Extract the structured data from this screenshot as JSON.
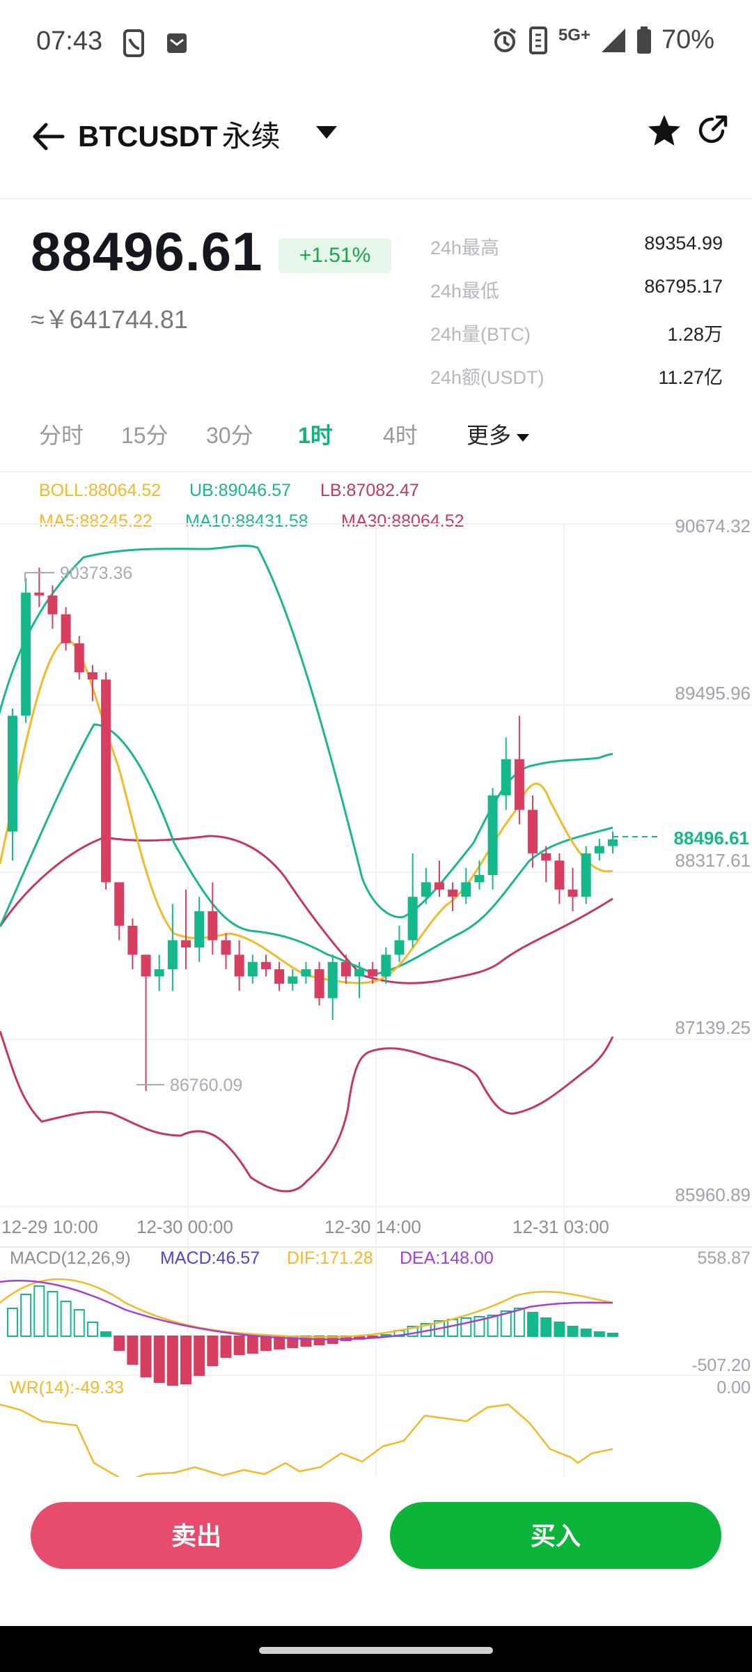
{
  "status_bar": {
    "time": "07:43",
    "network": "5G+",
    "battery": "70%"
  },
  "header": {
    "pair": "BTCUSDT",
    "contract": "永续"
  },
  "ticker": {
    "last_price": "88496.61",
    "change_pct": "+1.51%",
    "cny_price": "≈￥641744.81",
    "stats": [
      {
        "label": "24h最高",
        "value": "89354.99"
      },
      {
        "label": "24h最低",
        "value": "86795.17"
      },
      {
        "label": "24h量(BTC)",
        "value": "1.28万"
      },
      {
        "label": "24h额(USDT)",
        "value": "11.27亿"
      }
    ]
  },
  "interval_tabs": [
    {
      "label": "分时",
      "active": false
    },
    {
      "label": "15分",
      "active": false
    },
    {
      "label": "30分",
      "active": false
    },
    {
      "label": "1时",
      "active": true
    },
    {
      "label": "4时",
      "active": false
    },
    {
      "label": "更多",
      "active": false
    }
  ],
  "indicators": {
    "boll": "BOLL:88064.52",
    "ub": "UB:89046.57",
    "lb": "LB:87082.47",
    "ma5": "MA5:88245.22",
    "ma10": "MA10:88431.58",
    "ma30": "MA30:88064.52",
    "macd_params": "MACD(12,26,9)",
    "macd": "MACD:46.57",
    "dif": "DIF:171.28",
    "dea": "DEA:148.00",
    "wr": "WR(14):-49.33"
  },
  "colors": {
    "up": "#14b88a",
    "down": "#d63f5f",
    "ma5": "#f2b92a",
    "ma10": "#1bb58f",
    "ma30": "#c4385c",
    "dea": "#a43fd6",
    "accent": "#14b07a"
  },
  "chart_data": {
    "type": "candlestick",
    "title": "",
    "y_axis_labels": [
      "90674.32",
      "89495.96",
      "88317.61",
      "87139.25",
      "85960.89"
    ],
    "ylim": [
      85960.89,
      90674.32
    ],
    "x_tick_labels": [
      "12-29 10:00",
      "12-30 00:00",
      "12-30 14:00",
      "12-31 03:00"
    ],
    "last_price_marker": "88496.61",
    "high_annotation": "90373.36",
    "low_annotation": "86760.09",
    "candles": [
      [
        88550,
        89350,
        88350,
        89400
      ],
      [
        89350,
        90200,
        89300,
        90300
      ],
      [
        90200,
        90180,
        90100,
        90373.36
      ],
      [
        90180,
        90050,
        89950,
        90250
      ],
      [
        90050,
        89850,
        89800,
        90100
      ],
      [
        89850,
        89650,
        89600,
        89900
      ],
      [
        89650,
        89600,
        89450,
        89700
      ],
      [
        89600,
        88200,
        88150,
        89650
      ],
      [
        88200,
        87900,
        87800,
        88200
      ],
      [
        87900,
        87700,
        87600,
        87950
      ],
      [
        87700,
        87550,
        86760.09,
        87700
      ],
      [
        87550,
        87600,
        87450,
        87700
      ],
      [
        87600,
        87800,
        87450,
        88050
      ],
      [
        87800,
        87750,
        87600,
        88150
      ],
      [
        87750,
        88000,
        87650,
        88100
      ],
      [
        88000,
        87800,
        87700,
        88200
      ],
      [
        87800,
        87700,
        87600,
        87850
      ],
      [
        87700,
        87550,
        87450,
        87800
      ],
      [
        87550,
        87650,
        87500,
        87700
      ],
      [
        87650,
        87600,
        87550,
        87700
      ],
      [
        87600,
        87500,
        87450,
        87650
      ],
      [
        87500,
        87550,
        87450,
        87600
      ],
      [
        87550,
        87600,
        87500,
        87650
      ],
      [
        87600,
        87400,
        87350,
        87650
      ],
      [
        87400,
        87650,
        87250,
        87700
      ],
      [
        87650,
        87550,
        87500,
        87700
      ],
      [
        87550,
        87600,
        87400,
        87650
      ],
      [
        87600,
        87550,
        87500,
        87650
      ],
      [
        87550,
        87700,
        87500,
        87750
      ],
      [
        87700,
        87800,
        87650,
        87900
      ],
      [
        87800,
        88100,
        87750,
        88400
      ],
      [
        88100,
        88200,
        88050,
        88300
      ],
      [
        88200,
        88150,
        88100,
        88350
      ],
      [
        88150,
        88100,
        88000,
        88200
      ],
      [
        88100,
        88200,
        88050,
        88300
      ],
      [
        88200,
        88250,
        88150,
        88350
      ],
      [
        88250,
        88800,
        88150,
        88850
      ],
      [
        88800,
        89050,
        88700,
        89200
      ],
      [
        89050,
        88700,
        88600,
        89350
      ],
      [
        88700,
        88400,
        88300,
        88800
      ],
      [
        88400,
        88350,
        88200,
        88450
      ],
      [
        88350,
        88150,
        88050,
        88400
      ],
      [
        88150,
        88100,
        88000,
        88300
      ],
      [
        88100,
        88400,
        88050,
        88450
      ],
      [
        88400,
        88450,
        88350,
        88500
      ],
      [
        88450,
        88496.61,
        88400,
        88550
      ]
    ]
  }
}
